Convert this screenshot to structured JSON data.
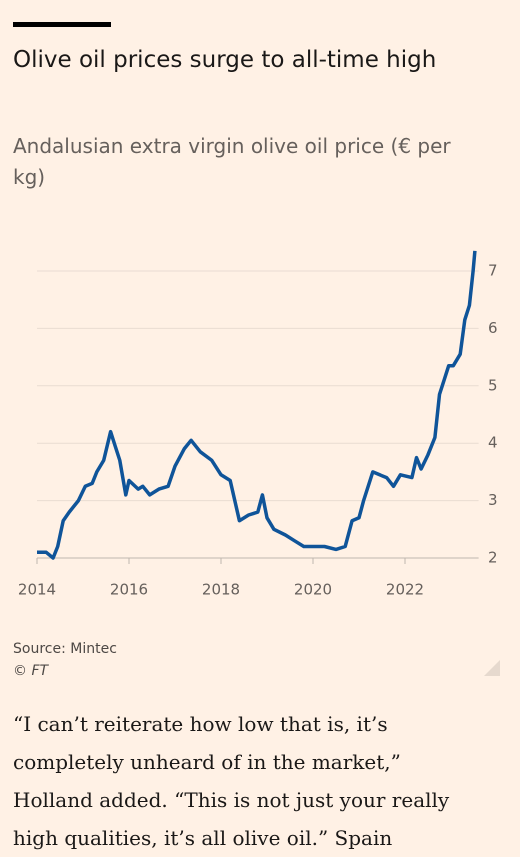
{
  "chart_data": {
    "type": "line",
    "title": "Olive oil prices surge to all-time high",
    "subtitle": "Andalusian extra virgin olive oil price (€ per kg)",
    "source": "Source: Mintec",
    "credit": "© FT",
    "color": "#0f5499",
    "x": [
      2014.0,
      2014.2,
      2014.35,
      2014.45,
      2014.57,
      2014.7,
      2014.9,
      2015.05,
      2015.2,
      2015.3,
      2015.45,
      2015.6,
      2015.7,
      2015.8,
      2015.93,
      2016.0,
      2016.2,
      2016.3,
      2016.45,
      2016.65,
      2016.85,
      2017.0,
      2017.2,
      2017.35,
      2017.55,
      2017.8,
      2018.0,
      2018.2,
      2018.3,
      2018.4,
      2018.6,
      2018.8,
      2018.9,
      2019.0,
      2019.15,
      2019.4,
      2019.6,
      2019.8,
      2020.0,
      2020.25,
      2020.5,
      2020.7,
      2020.85,
      2021.0,
      2021.1,
      2021.3,
      2021.45,
      2021.6,
      2021.75,
      2021.9,
      2022.15,
      2022.25,
      2022.35,
      2022.5,
      2022.65,
      2022.75,
      2022.85,
      2022.95,
      2023.05,
      2023.2,
      2023.3,
      2023.4,
      2023.48,
      2023.52
    ],
    "values": [
      2.1,
      2.1,
      2.0,
      2.2,
      2.65,
      2.8,
      3.0,
      3.25,
      3.3,
      3.5,
      3.7,
      4.2,
      3.95,
      3.7,
      3.1,
      3.35,
      3.2,
      3.25,
      3.1,
      3.2,
      3.25,
      3.6,
      3.9,
      4.05,
      3.85,
      3.7,
      3.45,
      3.35,
      3.0,
      2.65,
      2.75,
      2.8,
      3.1,
      2.7,
      2.5,
      2.4,
      2.3,
      2.2,
      2.2,
      2.2,
      2.15,
      2.2,
      2.65,
      2.7,
      3.0,
      3.5,
      3.45,
      3.4,
      3.25,
      3.45,
      3.4,
      3.75,
      3.55,
      3.8,
      4.1,
      4.85,
      5.1,
      5.35,
      5.35,
      5.55,
      6.15,
      6.4,
      7.0,
      7.35
    ],
    "xlim": [
      2014,
      2023.6
    ],
    "xticks": [
      2014,
      2016,
      2018,
      2020,
      2022
    ],
    "ylim": [
      2,
      7.5
    ],
    "yticks": [
      2,
      3,
      4,
      5,
      6,
      7
    ],
    "grid": true
  },
  "article": {
    "paragraph_lines": [
      "“I can’t reiterate how low that is, it’s",
      "completely unheard of in the market,”",
      "Holland added. “This is not just your really",
      "high qualities, it’s all olive oil.” Spain"
    ]
  }
}
